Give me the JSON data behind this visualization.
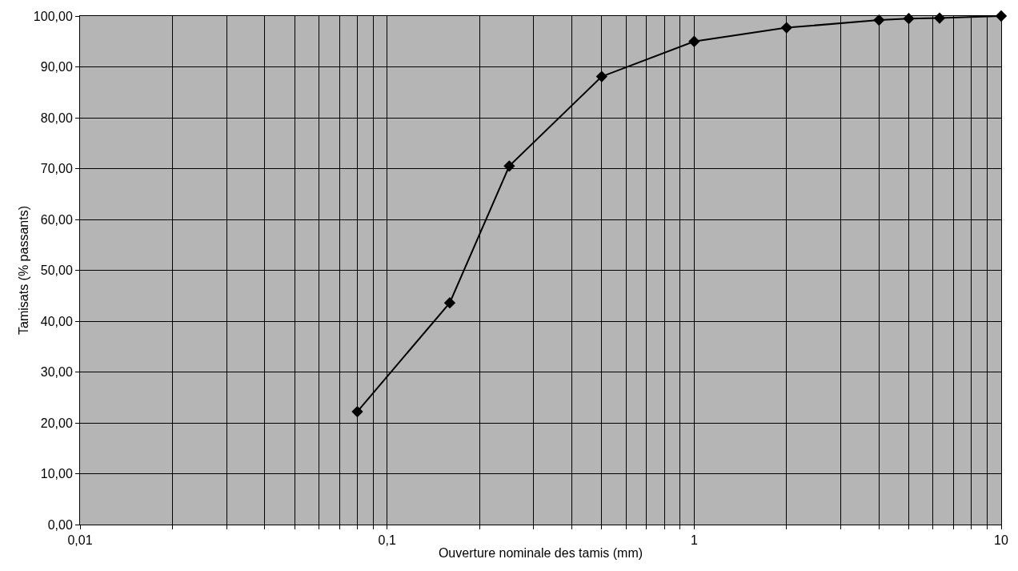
{
  "chart_data": {
    "type": "line",
    "xlabel": "Ouverture nominale des tamis (mm)",
    "ylabel": "Tamisats (% passants)",
    "x": [
      0.08,
      0.16,
      0.25,
      0.5,
      1,
      2,
      4,
      5,
      6.3,
      10
    ],
    "series": [
      {
        "color": "#000000",
        "values": [
          22.2,
          43.6,
          70.5,
          88.1,
          95,
          97.7,
          99.2,
          99.5,
          99.6,
          100
        ]
      }
    ],
    "log": "x",
    "xlim": [
      0.01,
      10
    ],
    "xticks": [
      {
        "value": 0.01,
        "label": "0,01"
      },
      {
        "value": 0.02,
        "label": null
      },
      {
        "value": 0.03,
        "label": null
      },
      {
        "value": 0.04,
        "label": null
      },
      {
        "value": 0.05,
        "label": null
      },
      {
        "value": 0.06,
        "label": null
      },
      {
        "value": 0.07,
        "label": null
      },
      {
        "value": 0.08,
        "label": null
      },
      {
        "value": 0.09,
        "label": null
      },
      {
        "value": 0.1,
        "label": "0,1"
      },
      {
        "value": 0.2,
        "label": null
      },
      {
        "value": 0.3,
        "label": null
      },
      {
        "value": 0.4,
        "label": null
      },
      {
        "value": 0.5,
        "label": null
      },
      {
        "value": 0.6,
        "label": null
      },
      {
        "value": 0.7,
        "label": null
      },
      {
        "value": 0.8,
        "label": null
      },
      {
        "value": 0.9,
        "label": null
      },
      {
        "value": 1,
        "label": "1"
      },
      {
        "value": 2,
        "label": null
      },
      {
        "value": 3,
        "label": null
      },
      {
        "value": 4,
        "label": null
      },
      {
        "value": 5,
        "label": null
      },
      {
        "value": 6,
        "label": null
      },
      {
        "value": 7,
        "label": null
      },
      {
        "value": 8,
        "label": null
      },
      {
        "value": 9,
        "label": null
      },
      {
        "value": 10,
        "label": "10"
      }
    ],
    "ylim": [
      0,
      100
    ],
    "yticks": [
      {
        "value": 0,
        "label": "0,00"
      },
      {
        "value": 10,
        "label": "10,00"
      },
      {
        "value": 20,
        "label": "20,00"
      },
      {
        "value": 30,
        "label": "30,00"
      },
      {
        "value": 40,
        "label": "40,00"
      },
      {
        "value": 50,
        "label": "50,00"
      },
      {
        "value": 60,
        "label": "60,00"
      },
      {
        "value": 70,
        "label": "70,00"
      },
      {
        "value": 80,
        "label": "80,00"
      },
      {
        "value": 90,
        "label": "90,00"
      },
      {
        "value": 100,
        "label": "100,00"
      }
    ],
    "grid": true,
    "marker": "diamond",
    "line_style": "solid"
  }
}
